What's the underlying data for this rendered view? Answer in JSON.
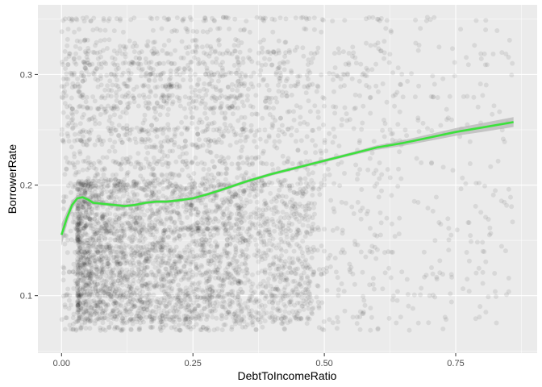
{
  "colors": {
    "panel_background": "#EBEBEB",
    "grid_major": "#FFFFFF",
    "points": "#000000",
    "smooth_line": "#3CE13C",
    "confidence_band": "#B3B3B3"
  },
  "chart_data": {
    "type": "scatter",
    "xlabel": "DebtToIncomeRatio",
    "ylabel": "BorrowerRate",
    "xlim": [
      -0.045,
      0.905
    ],
    "ylim": [
      0.048,
      0.363
    ],
    "x_ticks": [
      0.0,
      0.25,
      0.5,
      0.75
    ],
    "x_tick_labels": [
      "0.00",
      "0.25",
      "0.50",
      "0.75"
    ],
    "y_ticks": [
      0.1,
      0.2,
      0.3
    ],
    "y_tick_labels": [
      "0.1",
      "0.2",
      "0.3"
    ],
    "grid": true,
    "legend": "none",
    "point_alpha": 0.06,
    "point_layer": {
      "description_of_density": "Dense horizontal bands of points at discrete borrower rates between ~0.07 and ~0.35, most concentrated for DebtToIncomeRatio 0.05–0.35, thinning out toward 0.86.",
      "x_range": [
        0.0,
        0.86
      ],
      "y_range": [
        0.068,
        0.35
      ],
      "rate_bands": [
        0.07,
        0.075,
        0.08,
        0.085,
        0.09,
        0.095,
        0.1,
        0.105,
        0.11,
        0.115,
        0.12,
        0.125,
        0.13,
        0.135,
        0.14,
        0.145,
        0.15,
        0.155,
        0.16,
        0.165,
        0.17,
        0.175,
        0.18,
        0.185,
        0.19,
        0.195,
        0.2,
        0.205,
        0.21,
        0.215,
        0.22,
        0.225,
        0.23,
        0.235,
        0.24,
        0.245,
        0.25,
        0.255,
        0.26,
        0.265,
        0.27,
        0.275,
        0.28,
        0.285,
        0.29,
        0.295,
        0.3,
        0.305,
        0.31,
        0.315,
        0.32,
        0.325,
        0.33,
        0.34,
        0.35
      ],
      "heavy_bands": [
        0.35,
        0.32,
        0.31,
        0.29,
        0.3,
        0.28,
        0.27,
        0.25,
        0.24,
        0.22,
        0.2,
        0.16,
        0.14,
        0.12,
        0.1,
        0.08,
        0.07
      ]
    },
    "series": [
      {
        "type": "smooth",
        "x": [
          0.0,
          0.01,
          0.02,
          0.03,
          0.04,
          0.05,
          0.06,
          0.08,
          0.1,
          0.12,
          0.14,
          0.16,
          0.18,
          0.2,
          0.22,
          0.25,
          0.28,
          0.3,
          0.35,
          0.4,
          0.45,
          0.5,
          0.55,
          0.6,
          0.65,
          0.7,
          0.75,
          0.8,
          0.86
        ],
        "y": [
          0.155,
          0.17,
          0.182,
          0.188,
          0.189,
          0.187,
          0.184,
          0.183,
          0.182,
          0.181,
          0.182,
          0.184,
          0.185,
          0.185,
          0.186,
          0.188,
          0.192,
          0.195,
          0.203,
          0.21,
          0.216,
          0.222,
          0.228,
          0.234,
          0.238,
          0.243,
          0.248,
          0.252,
          0.257
        ],
        "band_halfwidth": [
          0.01,
          0.006,
          0.004,
          0.003,
          0.002,
          0.002,
          0.002,
          0.0015,
          0.0015,
          0.0015,
          0.0015,
          0.0015,
          0.0015,
          0.0015,
          0.0015,
          0.0015,
          0.0015,
          0.0015,
          0.0015,
          0.0015,
          0.0015,
          0.0015,
          0.0015,
          0.002,
          0.0025,
          0.003,
          0.0035,
          0.004,
          0.0045
        ]
      }
    ]
  }
}
